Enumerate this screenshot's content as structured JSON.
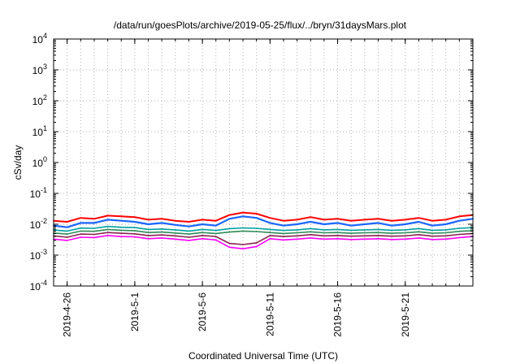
{
  "chart_data": {
    "type": "line",
    "title": "/data/run/goesPlots/archive/2019-05-25/flux/../bryn/31daysMars.plot",
    "xlabel": "Coordinated Universal Time (UTC)",
    "ylabel": "cSv/day",
    "y_scale": "log",
    "ylim": [
      0.0001,
      10000
    ],
    "y_ticks": [
      {
        "value": 0.0001,
        "base": "10",
        "exp": "-4"
      },
      {
        "value": 0.001,
        "base": "10",
        "exp": "-3"
      },
      {
        "value": 0.01,
        "base": "10",
        "exp": "-2"
      },
      {
        "value": 0.1,
        "base": "10",
        "exp": "-1"
      },
      {
        "value": 1,
        "base": "10",
        "exp": "0"
      },
      {
        "value": 10,
        "base": "10",
        "exp": "1"
      },
      {
        "value": 100,
        "base": "10",
        "exp": "2"
      },
      {
        "value": 1000,
        "base": "10",
        "exp": "3"
      },
      {
        "value": 10000,
        "base": "10",
        "exp": "4"
      }
    ],
    "x_scale": "date",
    "xlim": [
      "2019-04-25",
      "2019-05-26"
    ],
    "x_ticks": [
      "2019-4-26",
      "2019-5-1",
      "2019-5-6",
      "2019-5-11",
      "2019-5-16",
      "2019-5-21"
    ],
    "x_tick_dates": [
      "2019-04-26",
      "2019-05-01",
      "2019-05-06",
      "2019-05-11",
      "2019-05-16",
      "2019-05-21"
    ],
    "grid": true,
    "legend": "none",
    "series": [
      {
        "color": "#ff0000",
        "values": [
          0.013,
          0.012,
          0.016,
          0.015,
          0.019,
          0.018,
          0.017,
          0.014,
          0.015,
          0.013,
          0.012,
          0.014,
          0.013,
          0.02,
          0.024,
          0.022,
          0.016,
          0.013,
          0.014,
          0.017,
          0.014,
          0.015,
          0.013,
          0.014,
          0.015,
          0.013,
          0.014,
          0.016,
          0.013,
          0.014,
          0.018,
          0.02
        ]
      },
      {
        "color": "#1a66ff",
        "values": [
          0.009,
          0.008,
          0.011,
          0.011,
          0.014,
          0.013,
          0.012,
          0.01,
          0.011,
          0.0095,
          0.0085,
          0.01,
          0.009,
          0.015,
          0.018,
          0.016,
          0.011,
          0.009,
          0.01,
          0.012,
          0.01,
          0.011,
          0.009,
          0.01,
          0.011,
          0.009,
          0.01,
          0.012,
          0.009,
          0.01,
          0.013,
          0.015
        ]
      },
      {
        "color": "#00a0a0",
        "values": [
          0.0065,
          0.006,
          0.0075,
          0.0074,
          0.0085,
          0.008,
          0.0078,
          0.0068,
          0.007,
          0.0066,
          0.006,
          0.0068,
          0.0063,
          0.0072,
          0.0076,
          0.0074,
          0.0068,
          0.0063,
          0.0066,
          0.0072,
          0.0066,
          0.0068,
          0.0064,
          0.0066,
          0.0068,
          0.0064,
          0.0066,
          0.0072,
          0.0064,
          0.0066,
          0.0074,
          0.0078
        ]
      },
      {
        "color": "#2e8b57",
        "values": [
          0.0052,
          0.0048,
          0.006,
          0.0059,
          0.0068,
          0.0064,
          0.0062,
          0.0054,
          0.0056,
          0.0052,
          0.0048,
          0.0054,
          0.005,
          0.0056,
          0.006,
          0.0058,
          0.0054,
          0.005,
          0.0053,
          0.0057,
          0.0053,
          0.0054,
          0.0051,
          0.0053,
          0.0054,
          0.0051,
          0.0053,
          0.0057,
          0.0051,
          0.0053,
          0.0059,
          0.0062
        ]
      },
      {
        "color": "#8b2252",
        "values": [
          0.0042,
          0.0038,
          0.0048,
          0.0047,
          0.0054,
          0.0051,
          0.0049,
          0.0043,
          0.0045,
          0.0042,
          0.0038,
          0.0043,
          0.004,
          0.0024,
          0.0022,
          0.0025,
          0.0043,
          0.004,
          0.0042,
          0.0046,
          0.0042,
          0.0043,
          0.0041,
          0.0042,
          0.0043,
          0.0041,
          0.0042,
          0.0046,
          0.0041,
          0.0042,
          0.0047,
          0.005
        ]
      },
      {
        "color": "#ff00ff",
        "values": [
          0.0033,
          0.003,
          0.0038,
          0.0037,
          0.0043,
          0.004,
          0.0039,
          0.0034,
          0.0036,
          0.0033,
          0.003,
          0.0034,
          0.0031,
          0.0018,
          0.0016,
          0.0019,
          0.0034,
          0.0031,
          0.0033,
          0.0036,
          0.0033,
          0.0034,
          0.0032,
          0.0033,
          0.0034,
          0.0032,
          0.0033,
          0.0036,
          0.0032,
          0.0033,
          0.0037,
          0.004
        ]
      }
    ]
  }
}
